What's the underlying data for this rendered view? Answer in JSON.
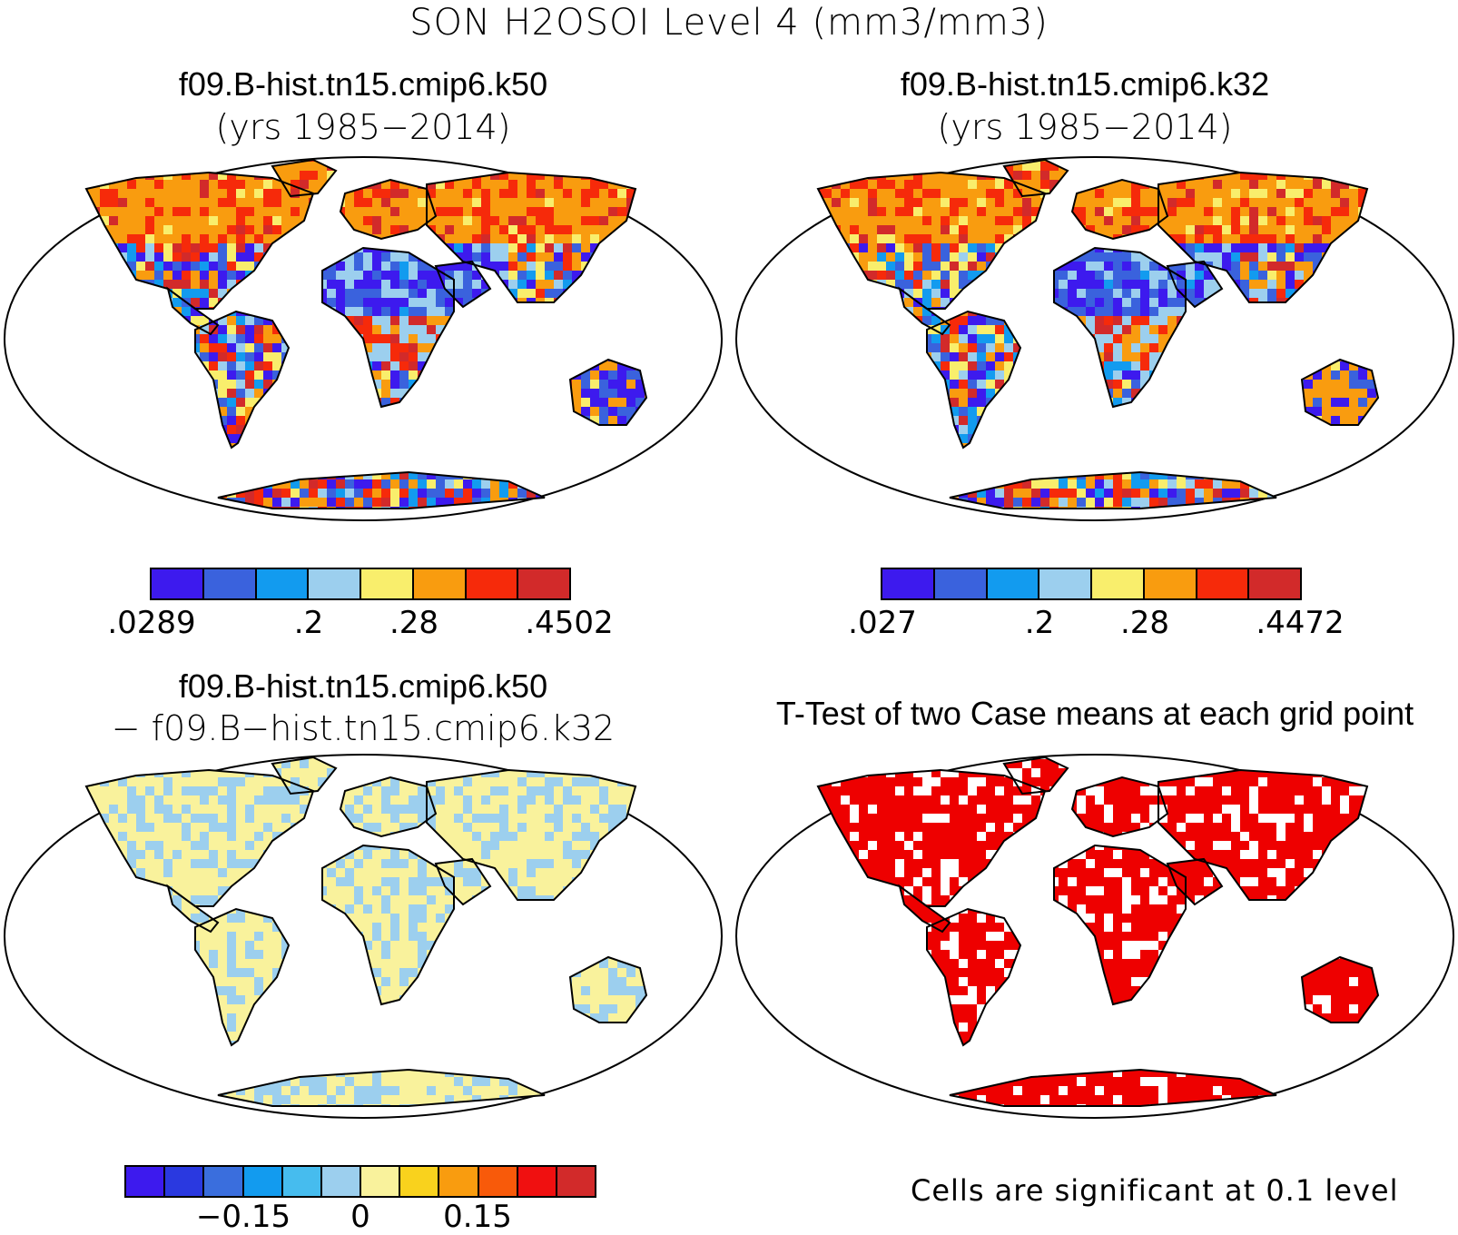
{
  "figure_title": "SON H2OSOI Level 4 (mm3/mm3)",
  "panels": {
    "top_left": {
      "title": "f09.B-hist.tn15.cmip6.k50",
      "subtitle": "(yrs 1985−2014)",
      "colorbar": {
        "colors": [
          "#3d1aee",
          "#3a62dd",
          "#129bef",
          "#9ccfee",
          "#f9ee6c",
          "#f99c0f",
          "#f62a0a",
          "#d22a2a"
        ],
        "ticks": [
          ".0289",
          ".2",
          ".28",
          ".4502"
        ]
      }
    },
    "top_right": {
      "title": "f09.B-hist.tn15.cmip6.k32",
      "subtitle": "(yrs 1985−2014)",
      "colorbar": {
        "colors": [
          "#3d1aee",
          "#3a62dd",
          "#129bef",
          "#9ccfee",
          "#f9ee6c",
          "#f99c0f",
          "#f62a0a",
          "#d22a2a"
        ],
        "ticks": [
          ".027",
          ".2",
          ".28",
          ".4472"
        ]
      }
    },
    "bottom_left": {
      "title": "f09.B-hist.tn15.cmip6.k50",
      "subtitle": "− f09.B−hist.tn15.cmip6.k32",
      "colorbar": {
        "colors": [
          "#3d1aee",
          "#2a39e0",
          "#3a6edd",
          "#129bef",
          "#46bcee",
          "#9ccfee",
          "#f9f29c",
          "#f9d21d",
          "#f99c0f",
          "#f85a0a",
          "#f01010",
          "#d22a2a"
        ],
        "ticks": [
          "−0.15",
          "0",
          "0.15"
        ]
      }
    },
    "bottom_right": {
      "title": "T-Test of two Case means at each grid point",
      "note": "Cells are significant at 0.1 level"
    }
  },
  "map_colors": {
    "ocean": "#ffffff",
    "coast": "#000000",
    "ttest_sig": "#ee0000"
  }
}
